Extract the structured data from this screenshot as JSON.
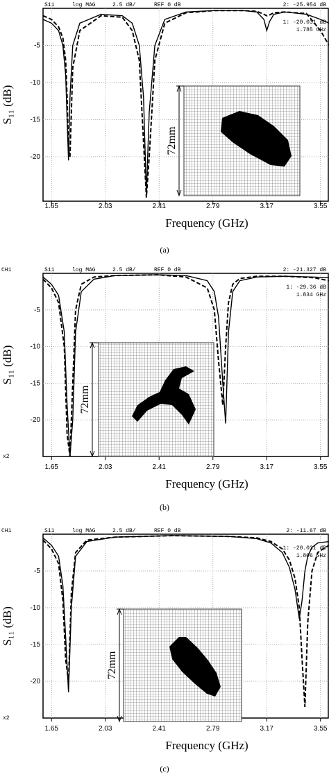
{
  "chart_data": [
    {
      "type": "line",
      "channel": null,
      "header": [
        "S11",
        "log MAG",
        "2.5 dB/",
        "REF 0 dB",
        "2: -25.954 dB",
        "1: -20.031 dB",
        "1.785 GHz"
      ],
      "x_label": "Frequency (GHz)",
      "y_label": "S₁₁ (dB)",
      "inset_label": "72mm",
      "caption": "(a)",
      "corner_note": null,
      "xlim": [
        1.59,
        3.61
      ],
      "xticks": [
        1.65,
        2.03,
        2.41,
        2.79,
        3.17,
        3.55
      ],
      "ylim": [
        -26,
        0
      ],
      "yticks": [
        -5,
        -10,
        -15,
        -20
      ],
      "grid": true,
      "x": [
        1.59,
        1.65,
        1.7,
        1.73,
        1.75,
        1.76,
        1.77,
        1.78,
        1.8,
        1.85,
        2.0,
        2.15,
        2.22,
        2.27,
        2.3,
        2.32,
        2.34,
        2.38,
        2.45,
        2.6,
        2.8,
        3.0,
        3.1,
        3.15,
        3.17,
        3.19,
        3.22,
        3.3,
        3.45,
        3.55,
        3.61
      ],
      "series": [
        {
          "color": "#000000",
          "style": "solid",
          "values": [
            -1.5,
            -2,
            -3,
            -5,
            -9,
            -15,
            -20.5,
            -12,
            -5,
            -2,
            -0.8,
            -1,
            -2,
            -5,
            -12,
            -25,
            -14,
            -5,
            -1.5,
            -0.5,
            -0.3,
            -0.3,
            -0.5,
            -1.5,
            -3,
            -1.8,
            -0.8,
            -0.5,
            -0.8,
            -1.5,
            -2
          ]
        },
        {
          "color": "#000000",
          "style": "dashed",
          "values": [
            -1,
            -1.5,
            -2.5,
            -4,
            -7,
            -12,
            -19,
            -20,
            -8,
            -3,
            -1,
            -1.2,
            -3,
            -7,
            -18,
            -25.5,
            -20,
            -7,
            -2,
            -0.6,
            -0.3,
            -0.3,
            -0.4,
            -0.8,
            -1,
            -0.9,
            -0.6,
            -0.5,
            -0.7,
            -3,
            -5
          ]
        }
      ]
    },
    {
      "type": "line",
      "channel": "CH1",
      "header": [
        "S11",
        "log MAG",
        "2.5 dB/",
        "REF 0 dB",
        "2: -21.327 dB",
        "1: -29.36 dB",
        "1.834 GHz"
      ],
      "x_label": "Frequency (GHz)",
      "y_label": "S₁₁ (dB)",
      "inset_label": "72mm",
      "caption": "(b)",
      "corner_note": "x2",
      "xlim": [
        1.59,
        3.61
      ],
      "xticks": [
        1.65,
        2.03,
        2.41,
        2.79,
        3.17,
        3.55
      ],
      "ylim": [
        -25,
        0
      ],
      "yticks": [
        -5,
        -10,
        -15,
        -20
      ],
      "grid": true,
      "x": [
        1.59,
        1.65,
        1.7,
        1.74,
        1.76,
        1.78,
        1.8,
        1.82,
        1.86,
        1.95,
        2.1,
        2.4,
        2.6,
        2.75,
        2.8,
        2.83,
        2.86,
        2.88,
        2.9,
        2.93,
        2.98,
        3.1,
        3.3,
        3.5,
        3.61
      ],
      "series": [
        {
          "color": "#000000",
          "style": "solid",
          "values": [
            -0.5,
            -1.5,
            -3,
            -8,
            -18,
            -25,
            -20,
            -8,
            -2.5,
            -0.8,
            -0.3,
            -0.2,
            -0.3,
            -1,
            -2.5,
            -6,
            -15,
            -20.5,
            -8,
            -2.5,
            -1,
            -0.5,
            -0.4,
            -0.5,
            -0.6
          ]
        },
        {
          "color": "#000000",
          "style": "dashed",
          "values": [
            -0.8,
            -2,
            -4,
            -10,
            -22,
            -25,
            -15,
            -5,
            -1.5,
            -0.5,
            -0.3,
            -0.2,
            -0.5,
            -2,
            -5,
            -12,
            -18,
            -10,
            -4,
            -1.5,
            -0.7,
            -0.4,
            -0.4,
            -0.6,
            -1
          ]
        }
      ]
    },
    {
      "type": "line",
      "channel": "CH1",
      "header": [
        "S11",
        "log MAG",
        "2.5 dB/",
        "REF 0 dB",
        "2: -11.67 dB",
        "1: -20.031 dB",
        "1.806 GHz"
      ],
      "x_label": "Frequency (GHz)",
      "y_label": "S₁₁ (dB)",
      "inset_label": "72mm",
      "caption": "(c)",
      "corner_note": "x2",
      "xlim": [
        1.59,
        3.61
      ],
      "xticks": [
        1.65,
        2.03,
        2.41,
        2.79,
        3.17,
        3.55
      ],
      "ylim": [
        -25,
        0
      ],
      "yticks": [
        -5,
        -10,
        -15,
        -20
      ],
      "grid": true,
      "x": [
        1.59,
        1.65,
        1.7,
        1.73,
        1.75,
        1.77,
        1.79,
        1.82,
        1.9,
        2.1,
        2.5,
        2.9,
        3.1,
        3.2,
        3.28,
        3.33,
        3.37,
        3.4,
        3.42,
        3.44,
        3.46,
        3.49,
        3.53,
        3.61
      ],
      "series": [
        {
          "color": "#000000",
          "style": "solid",
          "values": [
            -0.5,
            -1.5,
            -3,
            -7,
            -14,
            -21.5,
            -10,
            -3,
            -1,
            -0.4,
            -0.2,
            -0.3,
            -0.6,
            -1.2,
            -2.5,
            -4.5,
            -7.5,
            -11.5,
            -9,
            -5,
            -3,
            -1.8,
            -1.2,
            -1
          ]
        },
        {
          "color": "#000000",
          "style": "dashed",
          "values": [
            -0.8,
            -2,
            -4,
            -9,
            -17,
            -20,
            -8,
            -2.5,
            -0.8,
            -0.4,
            -0.2,
            -0.3,
            -0.5,
            -1,
            -2,
            -3.5,
            -6,
            -10,
            -17,
            -23.5,
            -12,
            -5,
            -2.5,
            -1.5
          ]
        }
      ]
    }
  ]
}
